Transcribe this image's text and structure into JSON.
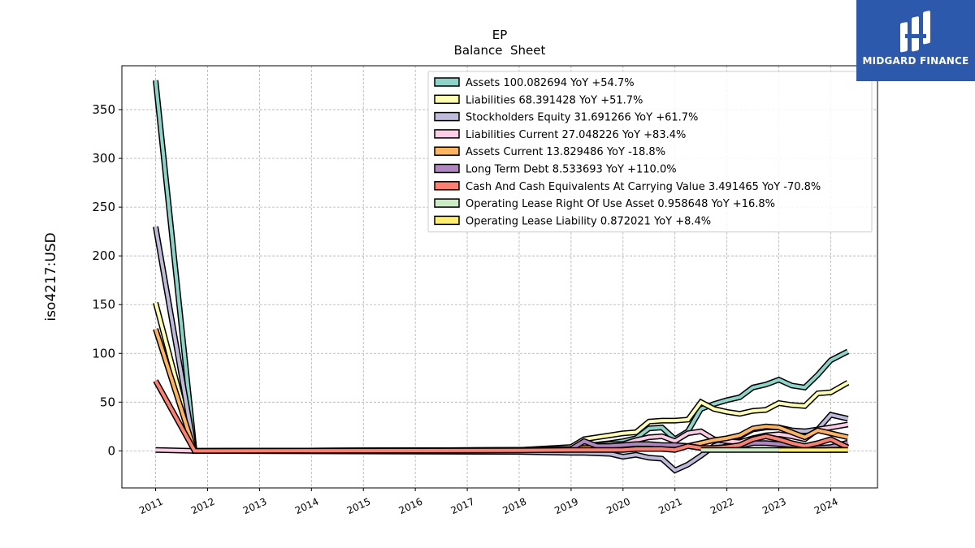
{
  "brand": {
    "name": "MIDGARD FINANCE",
    "logo_color": "#2d59ad"
  },
  "chart_data": {
    "type": "line",
    "title": "EP",
    "subtitle": "Balance  Sheet",
    "xlabel": "",
    "ylabel": "iso4217:USD",
    "xlim": [
      2010.35,
      2024.9
    ],
    "ylim": [
      -38,
      395
    ],
    "x_ticks": [
      "2011",
      "2012",
      "2013",
      "2014",
      "2015",
      "2016",
      "2017",
      "2018",
      "2019",
      "2020",
      "2021",
      "2022",
      "2023",
      "2024"
    ],
    "y_ticks": [
      0,
      50,
      100,
      150,
      200,
      250,
      300,
      350
    ],
    "grid": true,
    "legend_position": "top-right",
    "series": [
      {
        "name": "Assets",
        "legend": "Assets  100.082694 YoY +54.7%",
        "color": "#8dd3c7",
        "points": [
          [
            2011.0,
            380
          ],
          [
            2011.75,
            0
          ],
          [
            2018.0,
            1
          ],
          [
            2019.0,
            3
          ],
          [
            2019.25,
            5
          ],
          [
            2019.75,
            8
          ],
          [
            2020.0,
            10
          ],
          [
            2020.25,
            13
          ],
          [
            2020.5,
            23
          ],
          [
            2020.75,
            24
          ],
          [
            2021.0,
            12
          ],
          [
            2021.25,
            20
          ],
          [
            2021.5,
            43
          ],
          [
            2021.75,
            48
          ],
          [
            2022.0,
            52
          ],
          [
            2022.25,
            55
          ],
          [
            2022.5,
            65
          ],
          [
            2022.75,
            68
          ],
          [
            2023.0,
            73
          ],
          [
            2023.25,
            67
          ],
          [
            2023.5,
            65
          ],
          [
            2023.75,
            78
          ],
          [
            2024.0,
            93
          ],
          [
            2024.33,
            102
          ]
        ]
      },
      {
        "name": "Liabilities",
        "legend": "Liabilities  68.391428 YoY +51.7%",
        "color": "#ffffb3",
        "points": [
          [
            2011.0,
            152
          ],
          [
            2011.75,
            0
          ],
          [
            2018.0,
            1
          ],
          [
            2019.0,
            4
          ],
          [
            2019.25,
            12
          ],
          [
            2019.75,
            16
          ],
          [
            2020.0,
            18
          ],
          [
            2020.25,
            19
          ],
          [
            2020.5,
            30
          ],
          [
            2020.75,
            31
          ],
          [
            2021.0,
            31
          ],
          [
            2021.25,
            32
          ],
          [
            2021.5,
            50
          ],
          [
            2021.75,
            43
          ],
          [
            2022.0,
            40
          ],
          [
            2022.25,
            38
          ],
          [
            2022.5,
            41
          ],
          [
            2022.75,
            42
          ],
          [
            2023.0,
            49
          ],
          [
            2023.25,
            47
          ],
          [
            2023.5,
            46
          ],
          [
            2023.75,
            59
          ],
          [
            2024.0,
            60
          ],
          [
            2024.33,
            70
          ]
        ]
      },
      {
        "name": "Stockholders Equity",
        "legend": "Stockholders Equity  31.691266 YoY +61.7%",
        "color": "#bebada",
        "points": [
          [
            2011.0,
            230
          ],
          [
            2011.75,
            0
          ],
          [
            2018.0,
            -1
          ],
          [
            2019.0,
            -2
          ],
          [
            2019.25,
            -2
          ],
          [
            2019.75,
            -3
          ],
          [
            2020.0,
            -6
          ],
          [
            2020.25,
            -4
          ],
          [
            2020.5,
            -7
          ],
          [
            2020.75,
            -8
          ],
          [
            2021.0,
            -20
          ],
          [
            2021.25,
            -14
          ],
          [
            2021.5,
            -5
          ],
          [
            2021.75,
            5
          ],
          [
            2022.0,
            10
          ],
          [
            2022.25,
            15
          ],
          [
            2022.5,
            22
          ],
          [
            2022.75,
            24
          ],
          [
            2023.0,
            24
          ],
          [
            2023.25,
            21
          ],
          [
            2023.5,
            20
          ],
          [
            2023.75,
            22
          ],
          [
            2024.0,
            37
          ],
          [
            2024.33,
            33
          ]
        ]
      },
      {
        "name": "Liabilities Current",
        "legend": "Liabilities Current  27.048226 YoY +83.4%",
        "color": "#fccde5",
        "points": [
          [
            2011.0,
            1
          ],
          [
            2011.75,
            0
          ],
          [
            2018.0,
            1
          ],
          [
            2019.0,
            2
          ],
          [
            2019.25,
            5
          ],
          [
            2019.75,
            7
          ],
          [
            2020.0,
            7
          ],
          [
            2020.25,
            11
          ],
          [
            2020.5,
            14
          ],
          [
            2020.75,
            15
          ],
          [
            2021.0,
            10
          ],
          [
            2021.25,
            18
          ],
          [
            2021.5,
            20
          ],
          [
            2021.75,
            12
          ],
          [
            2022.0,
            10
          ],
          [
            2022.25,
            9
          ],
          [
            2022.5,
            13
          ],
          [
            2022.75,
            16
          ],
          [
            2023.0,
            17
          ],
          [
            2023.25,
            15
          ],
          [
            2023.5,
            12
          ],
          [
            2023.75,
            22
          ],
          [
            2024.0,
            24
          ],
          [
            2024.33,
            27
          ]
        ]
      },
      {
        "name": "Assets Current",
        "legend": "Assets Current  13.829486 YoY -18.8%",
        "color": "#fdb462",
        "points": [
          [
            2011.0,
            125
          ],
          [
            2011.75,
            0
          ],
          [
            2018.0,
            1
          ],
          [
            2019.0,
            2
          ],
          [
            2019.25,
            3
          ],
          [
            2019.75,
            3
          ],
          [
            2020.0,
            3
          ],
          [
            2020.25,
            4
          ],
          [
            2020.5,
            4
          ],
          [
            2020.75,
            4
          ],
          [
            2021.0,
            4
          ],
          [
            2021.25,
            5
          ],
          [
            2021.5,
            8
          ],
          [
            2021.75,
            11
          ],
          [
            2022.0,
            13
          ],
          [
            2022.25,
            16
          ],
          [
            2022.5,
            23
          ],
          [
            2022.75,
            25
          ],
          [
            2023.0,
            24
          ],
          [
            2023.25,
            19
          ],
          [
            2023.5,
            14
          ],
          [
            2023.75,
            21
          ],
          [
            2024.0,
            18
          ],
          [
            2024.33,
            14
          ]
        ]
      },
      {
        "name": "Long Term Debt",
        "legend": "Long Term Debt  8.533693 YoY +110.0%",
        "color": "#b086c0",
        "points": [
          [
            2019.0,
            2
          ],
          [
            2019.25,
            10
          ],
          [
            2019.5,
            5
          ],
          [
            2019.75,
            5
          ],
          [
            2020.0,
            6
          ],
          [
            2020.25,
            7
          ],
          [
            2020.5,
            7
          ],
          [
            2020.75,
            6
          ],
          [
            2021.0,
            6
          ],
          [
            2021.25,
            5
          ],
          [
            2021.5,
            3
          ],
          [
            2021.75,
            2
          ],
          [
            2022.0,
            3
          ],
          [
            2022.25,
            5
          ],
          [
            2022.5,
            8
          ],
          [
            2022.75,
            8
          ],
          [
            2023.0,
            7
          ],
          [
            2023.25,
            6
          ],
          [
            2023.5,
            4
          ],
          [
            2023.75,
            3
          ],
          [
            2024.0,
            4
          ],
          [
            2024.33,
            8.5
          ]
        ]
      },
      {
        "name": "Cash And Cash Equivalents At Carrying Value",
        "legend": "Cash And Cash Equivalents At Carrying Value  3.491465 YoY -70.8%",
        "color": "#fb8072",
        "points": [
          [
            2011.0,
            72
          ],
          [
            2011.75,
            0
          ],
          [
            2018.0,
            0.5
          ],
          [
            2019.0,
            1
          ],
          [
            2019.25,
            1
          ],
          [
            2019.75,
            1
          ],
          [
            2020.0,
            1
          ],
          [
            2020.25,
            2
          ],
          [
            2020.5,
            2
          ],
          [
            2020.75,
            2
          ],
          [
            2021.0,
            1
          ],
          [
            2021.25,
            5
          ],
          [
            2021.5,
            3
          ],
          [
            2021.75,
            3
          ],
          [
            2022.0,
            4
          ],
          [
            2022.25,
            6
          ],
          [
            2022.5,
            12
          ],
          [
            2022.75,
            15
          ],
          [
            2023.0,
            12
          ],
          [
            2023.25,
            8
          ],
          [
            2023.5,
            5
          ],
          [
            2023.75,
            8
          ],
          [
            2024.0,
            12
          ],
          [
            2024.33,
            3.5
          ]
        ]
      },
      {
        "name": "Operating Lease Right Of Use Asset",
        "legend": "Operating Lease Right Of Use Asset  0.958648 YoY +16.8%",
        "color": "#ccebc5",
        "points": [
          [
            2021.5,
            1
          ],
          [
            2021.75,
            1
          ],
          [
            2022.0,
            1
          ],
          [
            2022.25,
            1
          ],
          [
            2022.5,
            1
          ],
          [
            2022.75,
            1
          ],
          [
            2023.0,
            1
          ],
          [
            2023.5,
            1
          ],
          [
            2024.0,
            1
          ],
          [
            2024.33,
            1
          ]
        ]
      },
      {
        "name": "Operating Lease Liability",
        "legend": "Operating Lease Liability  0.872021 YoY +8.4%",
        "color": "#ffed6f",
        "points": [
          [
            2023.0,
            0.8
          ],
          [
            2023.5,
            0.8
          ],
          [
            2024.0,
            0.9
          ],
          [
            2024.33,
            0.9
          ]
        ]
      }
    ]
  }
}
